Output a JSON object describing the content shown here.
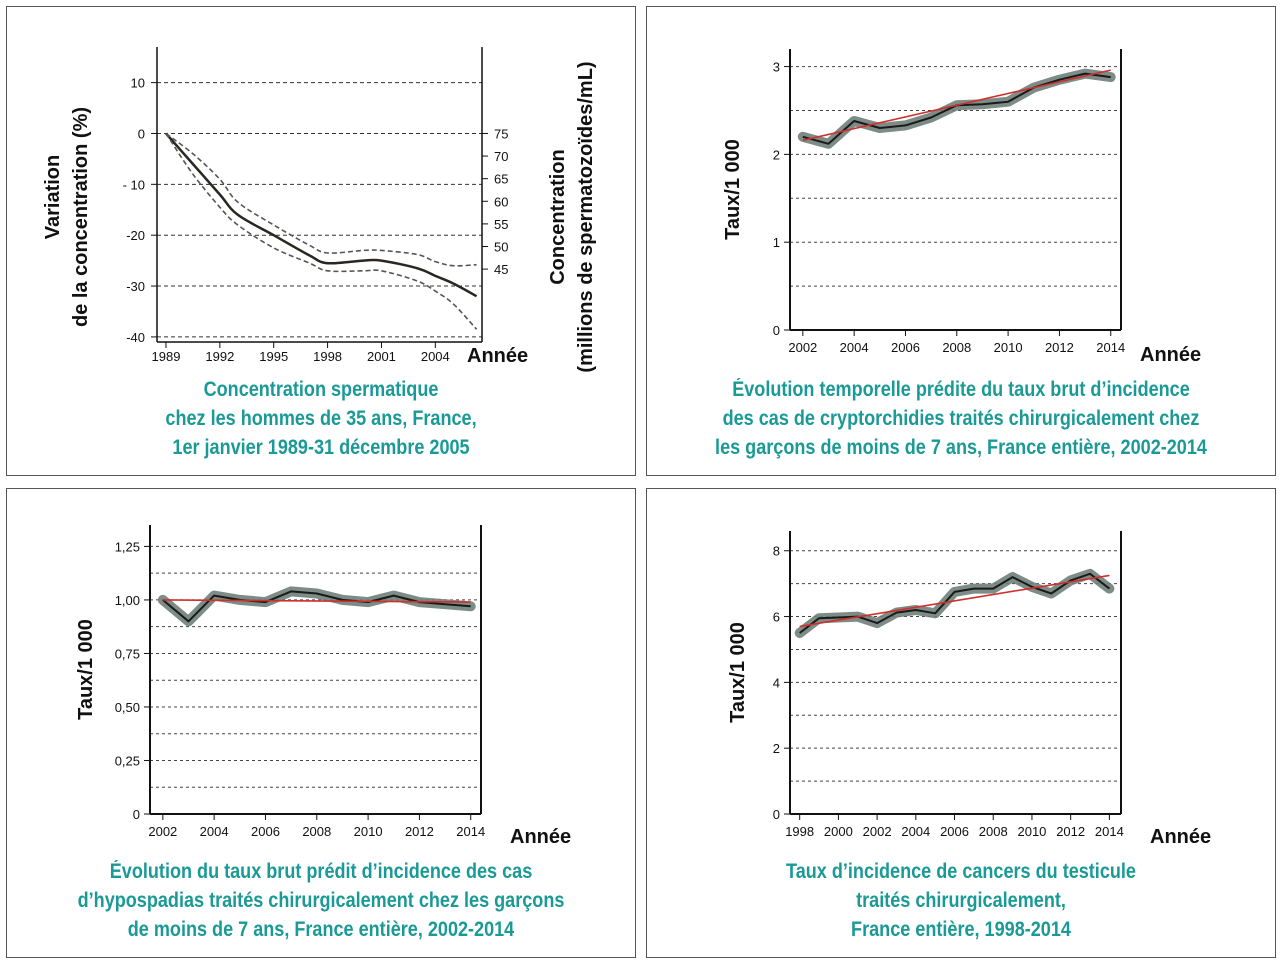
{
  "chart_data": [
    {
      "type": "line",
      "title_lines": [
        "Concentration spermatique",
        "chez les hommes de 35 ans, France,",
        "1er janvier 1989-31 décembre 2005"
      ],
      "xlabel": "Année",
      "ylabel_lines": [
        "Variation",
        "de la concentration (%)"
      ],
      "ylabel_right_lines": [
        "Concentration",
        "(millions de spermatozoïdes/mL)"
      ],
      "x_ticks": [
        "1989",
        "1992",
        "1995",
        "1998",
        "2001",
        "2004"
      ],
      "y_ticks": [
        "10",
        "0",
        "- 10",
        "-20",
        "-30",
        "-40"
      ],
      "y_right_ticks": [
        "75",
        "70",
        "65",
        "60",
        "55",
        "50",
        "45"
      ],
      "xlim": [
        1988.5,
        2006.6
      ],
      "ylim": [
        -41,
        17
      ],
      "grid": true,
      "series": [
        {
          "role": "estimate",
          "x": [
            1989,
            1990.5,
            1992,
            1993,
            1995,
            1997,
            1998,
            2000,
            2001,
            2003,
            2004,
            2005,
            2006.3
          ],
          "values": [
            0,
            -6,
            -12,
            -16,
            -20,
            -24,
            -25.5,
            -25,
            -25,
            -26.5,
            -28,
            -29.5,
            -32
          ]
        },
        {
          "role": "upper bound",
          "x": [
            1989,
            1990.5,
            1992,
            1993,
            1995,
            1997,
            1998,
            2000,
            2001,
            2003,
            2004,
            2005,
            2006.3
          ],
          "values": [
            0,
            -4,
            -9,
            -13.5,
            -18,
            -22,
            -23.5,
            -23,
            -23,
            -23.8,
            -25.2,
            -26,
            -25.8
          ]
        },
        {
          "role": "lower bound",
          "x": [
            1989,
            1990.5,
            1992,
            1993,
            1995,
            1997,
            1998,
            2000,
            2001,
            2003,
            2004,
            2005,
            2006.3
          ],
          "values": [
            0,
            -8,
            -14.5,
            -18,
            -22.5,
            -25.5,
            -27,
            -27,
            -27,
            -29,
            -31,
            -33.5,
            -38.5
          ]
        }
      ]
    },
    {
      "type": "line",
      "title_lines": [
        "Évolution temporelle prédite du taux brut d’incidence",
        "des cas de cryptorchidies traités chirurgicalement chez",
        "les garçons de moins de 7 ans, France entière, 2002-2014"
      ],
      "xlabel": "Année",
      "ylabel": "Taux/1 000",
      "x_ticks": [
        "2002",
        "2004",
        "2006",
        "2008",
        "2010",
        "2012",
        "2014"
      ],
      "y_ticks": [
        "3",
        "2",
        "1",
        "0"
      ],
      "xlim": [
        2001.5,
        2014.4
      ],
      "ylim": [
        0,
        3.2
      ],
      "grid": true,
      "series": [
        {
          "role": "observed",
          "x": [
            2002,
            2003,
            2004,
            2005,
            2006,
            2007,
            2008,
            2009,
            2010,
            2011,
            2012,
            2013,
            2014
          ],
          "values": [
            2.2,
            2.12,
            2.38,
            2.3,
            2.33,
            2.42,
            2.56,
            2.57,
            2.6,
            2.76,
            2.85,
            2.92,
            2.88
          ]
        },
        {
          "role": "trend",
          "x": [
            2002,
            2014
          ],
          "values": [
            2.16,
            2.96
          ]
        }
      ],
      "colors": {
        "observed": "#1a1a1a",
        "band": "#6f7f79",
        "trend": "#d0302b"
      }
    },
    {
      "type": "line",
      "title_lines": [
        "Évolution du taux brut prédit d’incidence des cas",
        "d’hypospadias traités chirurgicalement chez les garçons",
        "de moins de 7 ans, France entière, 2002-2014"
      ],
      "xlabel": "Année",
      "ylabel": "Taux/1 000",
      "x_ticks": [
        "2002",
        "2004",
        "2006",
        "2008",
        "2010",
        "2012",
        "2014"
      ],
      "y_ticks": [
        "1,25",
        "1,00",
        "0,75",
        "0,50",
        "0,25",
        "0"
      ],
      "xlim": [
        2001.5,
        2014.4
      ],
      "ylim": [
        0,
        1.35
      ],
      "grid": true,
      "series": [
        {
          "role": "observed",
          "x": [
            2002,
            2003,
            2004,
            2005,
            2006,
            2007,
            2008,
            2009,
            2010,
            2011,
            2012,
            2013,
            2014
          ],
          "values": [
            1.0,
            0.9,
            1.02,
            1.0,
            0.99,
            1.04,
            1.03,
            1.0,
            0.99,
            1.02,
            0.99,
            0.98,
            0.97
          ]
        },
        {
          "role": "trend",
          "x": [
            2002,
            2014
          ],
          "values": [
            1.0,
            0.99
          ]
        }
      ],
      "colors": {
        "observed": "#1a1a1a",
        "band": "#6f7f79",
        "trend": "#d0302b"
      }
    },
    {
      "type": "line",
      "title_lines": [
        "Taux d’incidence de cancers du testicule",
        "traités chirurgicalement,",
        "France entière, 1998-2014"
      ],
      "xlabel": "Année",
      "ylabel": "Taux/1 000",
      "x_ticks": [
        "1998",
        "2000",
        "2002",
        "2004",
        "2006",
        "2008",
        "2010",
        "2012",
        "2014"
      ],
      "y_ticks": [
        "8",
        "6",
        "4",
        "2",
        "0"
      ],
      "xlim": [
        1997.5,
        2014.6
      ],
      "ylim": [
        0,
        8.6
      ],
      "grid": true,
      "series": [
        {
          "role": "observed",
          "x": [
            1998,
            1999,
            2000,
            2001,
            2002,
            2003,
            2004,
            2005,
            2006,
            2007,
            2008,
            2009,
            2010,
            2011,
            2012,
            2013,
            2014
          ],
          "values": [
            5.5,
            5.95,
            5.97,
            6.0,
            5.8,
            6.12,
            6.2,
            6.1,
            6.75,
            6.85,
            6.85,
            7.2,
            6.9,
            6.7,
            7.1,
            7.3,
            6.85
          ]
        },
        {
          "role": "trend",
          "x": [
            1998,
            2014
          ],
          "values": [
            5.7,
            7.25
          ]
        }
      ],
      "colors": {
        "observed": "#1a1a1a",
        "band": "#6f7f79",
        "trend": "#d0302b"
      }
    }
  ]
}
